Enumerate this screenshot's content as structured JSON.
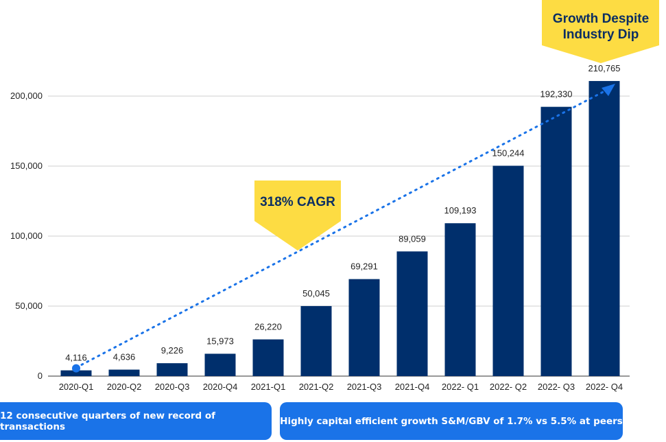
{
  "chart_data": {
    "type": "bar",
    "categories": [
      "2020-Q1",
      "2020-Q2",
      "2020-Q3",
      "2020-Q4",
      "2021-Q1",
      "2021-Q2",
      "2021-Q3",
      "2021-Q4",
      "2022- Q1",
      "2022- Q2",
      "2022- Q3",
      "2022- Q4"
    ],
    "values": [
      4116,
      4636,
      9226,
      15973,
      26220,
      50045,
      69291,
      89059,
      109193,
      150244,
      192330,
      210765
    ],
    "data_labels": [
      "4,116",
      "4,636",
      "9,226",
      "15,973",
      "26,220",
      "50,045",
      "69,291",
      "89,059",
      "109,193",
      "150,244",
      "192,330",
      "210,765"
    ],
    "ylim": [
      0,
      210000
    ],
    "yticks": [
      0,
      50000,
      100000,
      150000,
      200000
    ],
    "ytick_labels": [
      "0",
      "50,000",
      "100,000",
      "150,000",
      "200,000"
    ],
    "grid": true,
    "bar_color": "#002f6c",
    "trendline_color": "#1a73e8",
    "annotations": [
      {
        "text": "318% CAGR"
      },
      {
        "text_lines": [
          "Growth Despite",
          "Industry Dip"
        ]
      }
    ]
  },
  "footer": {
    "left": "12 consecutive quarters of new record of transactions",
    "right": "Highly capital efficient growth S&M/GBV  of 1.7% vs 5.5% at peers"
  }
}
